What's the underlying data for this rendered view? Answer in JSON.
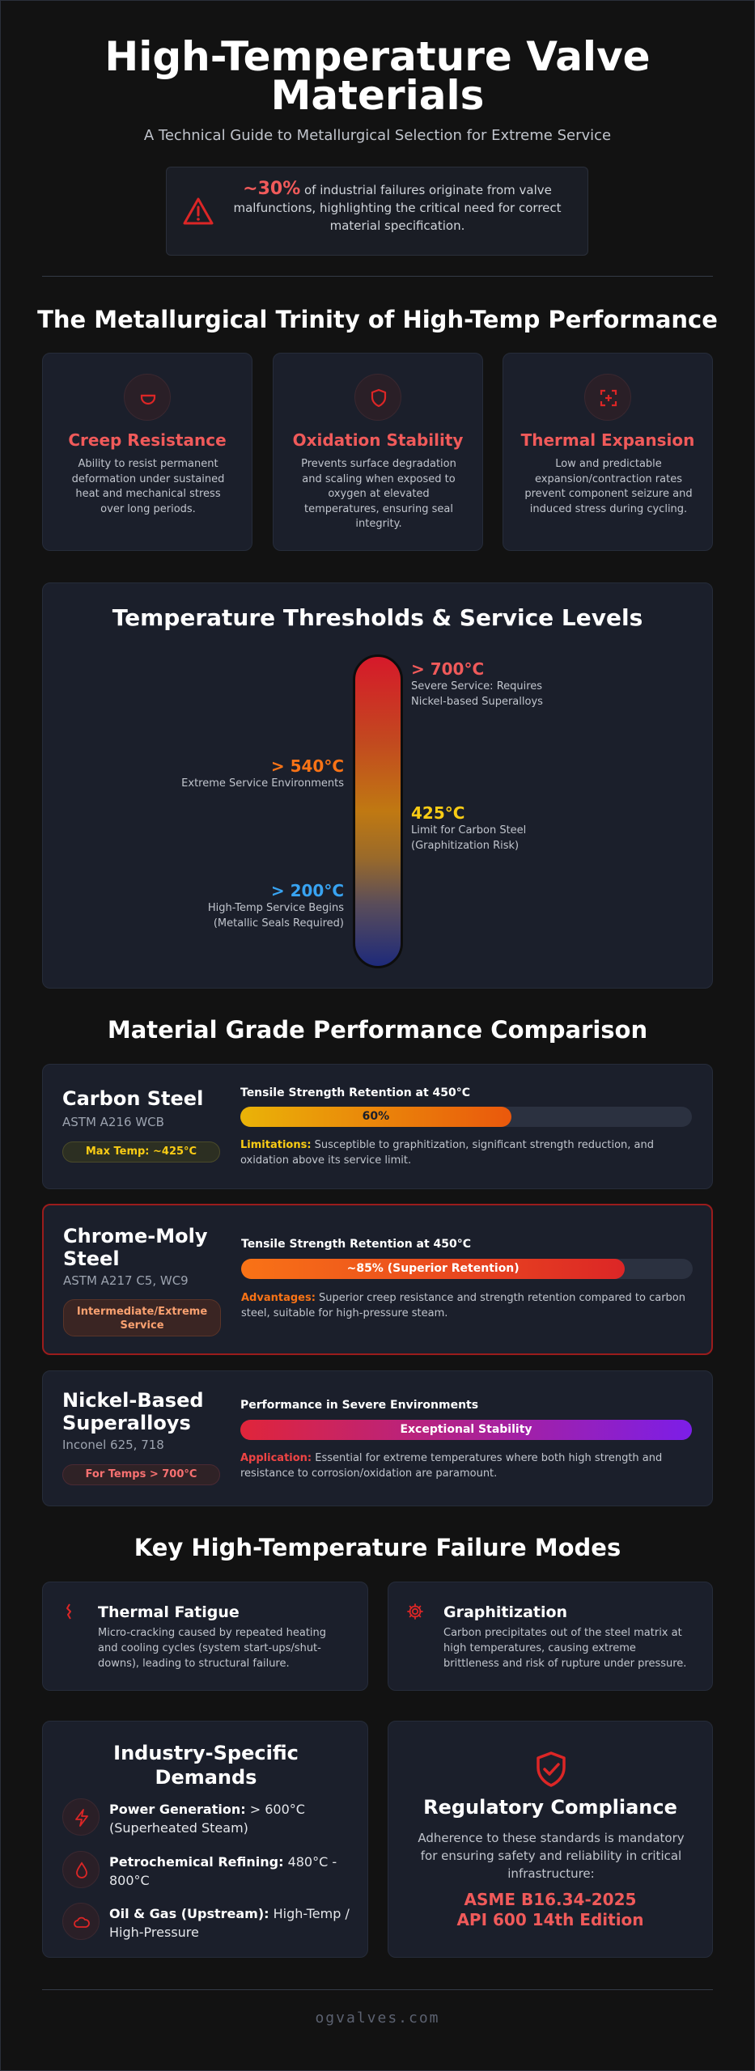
{
  "header": {
    "title": "High-Temperature Valve Materials",
    "subtitle": "A Technical Guide to Metallurgical Selection for Extreme Service",
    "stat_value": "~30%",
    "stat_text": " of industrial failures originate from valve malfunctions, highlighting the critical need for correct material specification."
  },
  "trinity": {
    "title": "The Metallurgical Trinity of High-Temp Performance",
    "items": [
      {
        "title": "Creep Resistance",
        "icon": "creep-icon",
        "desc": "Ability to resist permanent deformation under sustained heat and mechanical stress over long periods."
      },
      {
        "title": "Oxidation Stability",
        "icon": "shield-icon",
        "desc": "Prevents surface degradation and scaling when exposed to oxygen at elevated temperatures, ensuring seal integrity."
      },
      {
        "title": "Thermal Expansion",
        "icon": "expand-icon",
        "desc": "Low and predictable expansion/contraction rates prevent component seizure and induced stress during cycling."
      }
    ]
  },
  "thresholds": {
    "title": "Temperature Thresholds & Service Levels",
    "levels": [
      {
        "value": "> 700°C",
        "desc_1": "Severe Service: Requires",
        "desc_2": "Nickel-based Superalloys",
        "color": "#f05a5a"
      },
      {
        "value": "> 540°C",
        "desc_1": "Extreme Service Environments",
        "desc_2": "",
        "color": "#f97316"
      },
      {
        "value": "425°C",
        "desc_1": "Limit for Carbon Steel",
        "desc_2": "(Graphitization Risk)",
        "color": "#facc15"
      },
      {
        "value": "> 200°C",
        "desc_1": "High-Temp Service Begins",
        "desc_2": "(Metallic Seals Required)",
        "color": "#38a3f1"
      }
    ]
  },
  "materials": {
    "title": "Material Grade Performance Comparison",
    "items": [
      {
        "name": "Carbon Steel",
        "spec": "ASTM A216 WCB",
        "pill": "Max Temp: ~425°C",
        "bar_title": "Tensile Strength Retention at 450°C",
        "bar_label": "60%",
        "bar_fraction": 0.6,
        "note_label": "Limitations:",
        "note_text": " Susceptible to graphitization, significant strength reduction, and oxidation above its service limit."
      },
      {
        "name": "Chrome-Moly Steel",
        "spec": "ASTM A217 C5, WC9",
        "pill": "Intermediate/Extreme Service",
        "bar_title": "Tensile Strength Retention at 450°C",
        "bar_label": "~85% (Superior Retention)",
        "bar_fraction": 0.85,
        "note_label": "Advantages:",
        "note_text": " Superior creep resistance and strength retention compared to carbon steel, suitable for high-pressure steam."
      },
      {
        "name": "Nickel-Based Superalloys",
        "spec": "Inconel 625, 718",
        "pill": "For Temps > 700°C",
        "bar_title": "Performance in Severe Environments",
        "bar_label": "Exceptional Stability",
        "bar_fraction": 1.0,
        "note_label": "Application:",
        "note_text": " Essential for extreme temperatures where both high strength and resistance to corrosion/oxidation are paramount."
      }
    ]
  },
  "failures": {
    "title": "Key High-Temperature Failure Modes",
    "items": [
      {
        "title": "Thermal Fatigue",
        "icon": "crack-icon",
        "desc": "Micro-cracking caused by repeated heating and cooling cycles (system start-ups/shut-downs), leading to structural failure."
      },
      {
        "title": "Graphitization",
        "icon": "gear-icon",
        "desc": "Carbon precipitates out of the steel matrix at high temperatures, causing extreme brittleness and risk of rupture under pressure."
      }
    ]
  },
  "industry": {
    "title": "Industry-Specific Demands",
    "items": [
      {
        "label": "Power Generation:",
        "text": " > 600°C (Superheated Steam)",
        "icon": "bolt-icon"
      },
      {
        "label": "Petrochemical Refining:",
        "text": " 480°C - 800°C",
        "icon": "drop-icon"
      },
      {
        "label": "Oil & Gas (Upstream):",
        "text": " High-Temp / High-Pressure",
        "icon": "cloud-icon"
      }
    ]
  },
  "compliance": {
    "title": "Regulatory Compliance",
    "desc": "Adherence to these standards is mandatory for ensuring safety and reliability in critical infrastructure:",
    "standards": [
      "ASME B16.34-2025",
      "API 600 14th Edition"
    ]
  },
  "footer": "ogvalves.com",
  "colors": {
    "accent": "#ef4444",
    "background": "#121212",
    "card": "#1b1f2b"
  }
}
